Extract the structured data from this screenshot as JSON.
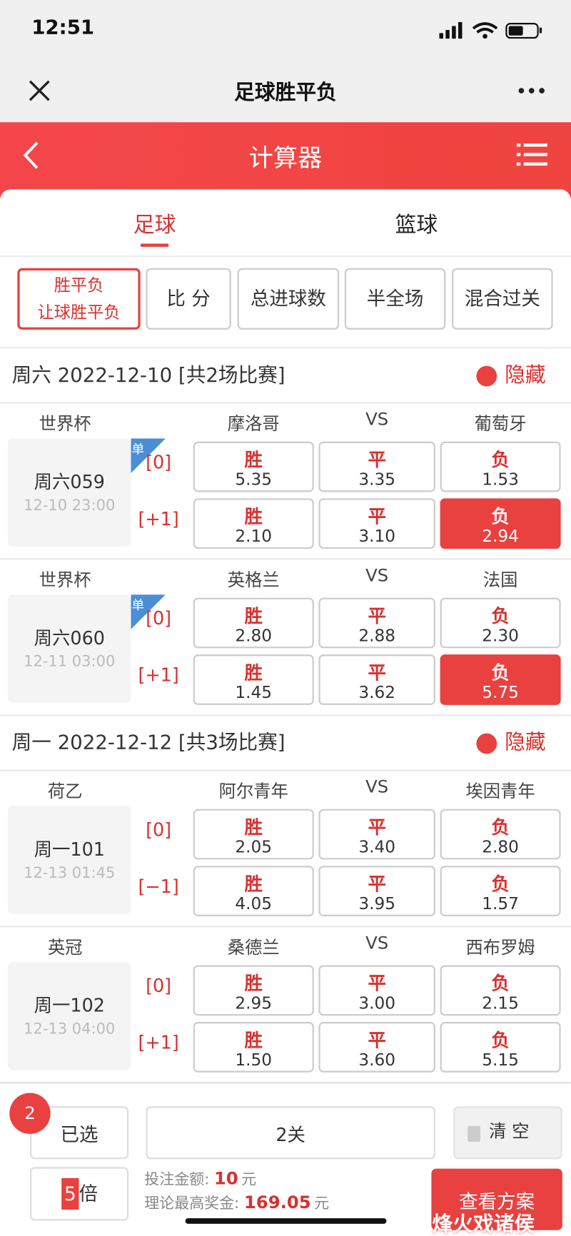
{
  "status_bar": {
    "time": "12:51"
  },
  "nav": {
    "title": "足球胜平负"
  },
  "header": {
    "title": "计算器"
  },
  "tabs": [
    {
      "label": "足球",
      "active": true
    },
    {
      "label": "篮球",
      "active": false
    }
  ],
  "play_types": [
    {
      "lines": [
        "胜平负",
        "让球胜平负"
      ],
      "selected": true
    },
    {
      "lines": [
        "比 分"
      ],
      "selected": false
    },
    {
      "lines": [
        "总进球数"
      ],
      "selected": false
    },
    {
      "lines": [
        "半全场"
      ],
      "selected": false
    },
    {
      "lines": [
        "混合过关"
      ],
      "selected": false
    }
  ],
  "days": [
    {
      "title": "周六 2022-12-10 [共2场比赛]",
      "toggle": "隐藏",
      "matches": [
        {
          "league": "世界杯",
          "home": "摩洛哥",
          "vs": "VS",
          "away": "葡萄牙",
          "code": "周六059",
          "time": "12-10 23:00",
          "badge": "单",
          "rows": [
            {
              "handicap": "[0]",
              "options": [
                {
                  "label": "胜",
                  "odds": "5.35",
                  "selected": false
                },
                {
                  "label": "平",
                  "odds": "3.35",
                  "selected": false
                },
                {
                  "label": "负",
                  "odds": "1.53",
                  "selected": false
                }
              ]
            },
            {
              "handicap": "[+1]",
              "options": [
                {
                  "label": "胜",
                  "odds": "2.10",
                  "selected": false
                },
                {
                  "label": "平",
                  "odds": "3.10",
                  "selected": false
                },
                {
                  "label": "负",
                  "odds": "2.94",
                  "selected": true
                }
              ]
            }
          ]
        },
        {
          "league": "世界杯",
          "home": "英格兰",
          "vs": "VS",
          "away": "法国",
          "code": "周六060",
          "time": "12-11 03:00",
          "badge": "单",
          "rows": [
            {
              "handicap": "[0]",
              "options": [
                {
                  "label": "胜",
                  "odds": "2.80",
                  "selected": false
                },
                {
                  "label": "平",
                  "odds": "2.88",
                  "selected": false
                },
                {
                  "label": "负",
                  "odds": "2.30",
                  "selected": false
                }
              ]
            },
            {
              "handicap": "[+1]",
              "options": [
                {
                  "label": "胜",
                  "odds": "1.45",
                  "selected": false
                },
                {
                  "label": "平",
                  "odds": "3.62",
                  "selected": false
                },
                {
                  "label": "负",
                  "odds": "5.75",
                  "selected": true
                }
              ]
            }
          ]
        }
      ]
    },
    {
      "title": "周一 2022-12-12 [共3场比赛]",
      "toggle": "隐藏",
      "matches": [
        {
          "league": "荷乙",
          "home": "阿尔青年",
          "vs": "VS",
          "away": "埃因青年",
          "code": "周一101",
          "time": "12-13 01:45",
          "rows": [
            {
              "handicap": "[0]",
              "options": [
                {
                  "label": "胜",
                  "odds": "2.05",
                  "selected": false
                },
                {
                  "label": "平",
                  "odds": "3.40",
                  "selected": false
                },
                {
                  "label": "负",
                  "odds": "2.80",
                  "selected": false
                }
              ]
            },
            {
              "handicap": "[−1]",
              "options": [
                {
                  "label": "胜",
                  "odds": "4.05",
                  "selected": false
                },
                {
                  "label": "平",
                  "odds": "3.95",
                  "selected": false
                },
                {
                  "label": "负",
                  "odds": "1.57",
                  "selected": false
                }
              ]
            }
          ]
        },
        {
          "league": "英冠",
          "home": "桑德兰",
          "vs": "VS",
          "away": "西布罗姆",
          "code": "周一102",
          "time": "12-13 04:00",
          "rows": [
            {
              "handicap": "[0]",
              "options": [
                {
                  "label": "胜",
                  "odds": "2.95",
                  "selected": false
                },
                {
                  "label": "平",
                  "odds": "3.00",
                  "selected": false
                },
                {
                  "label": "负",
                  "odds": "2.15",
                  "selected": false
                }
              ]
            },
            {
              "handicap": "[+1]",
              "options": [
                {
                  "label": "胜",
                  "odds": "1.50",
                  "selected": false
                },
                {
                  "label": "平",
                  "odds": "3.60",
                  "selected": false
                },
                {
                  "label": "负",
                  "odds": "5.15",
                  "selected": false
                }
              ]
            }
          ]
        }
      ]
    }
  ],
  "footer": {
    "selected_count": "2",
    "selected_label": "已选",
    "pass": "2关",
    "clear": "清 空",
    "multiple": "5",
    "multiple_unit": "倍",
    "stake_label": "投注金额:",
    "stake": "10",
    "stake_unit": "元",
    "prize_label": "理论最高奖金:",
    "prize": "169.05",
    "prize_unit": "元",
    "submit": "查看方案"
  },
  "watermark": "烽火戏诸侯"
}
